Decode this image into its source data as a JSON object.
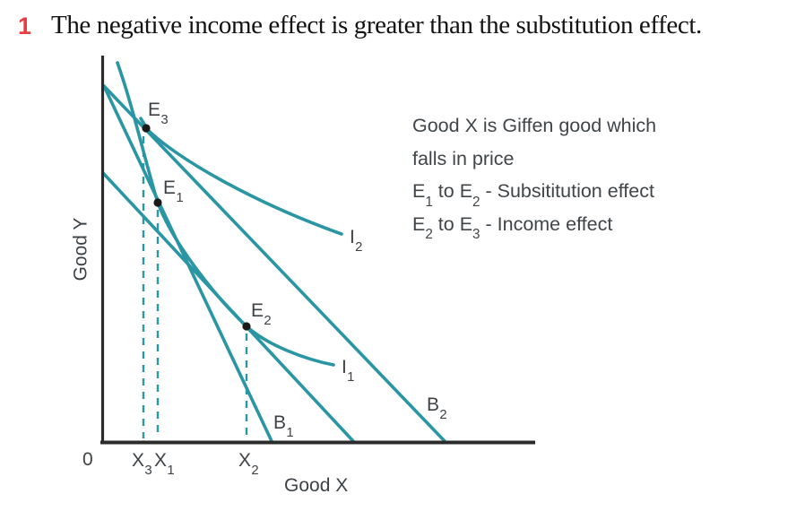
{
  "title": {
    "number": "1",
    "text": "The negative income effect is greater than the substitution effect."
  },
  "colors": {
    "curve_teal": "#2a96a3",
    "axis_black": "#2b2b2b",
    "label_gray": "#3d4246",
    "title_red": "#e63e44",
    "dot_black": "#1a1a1a"
  },
  "graph": {
    "origin_label": "0",
    "x_axis_label": "Good X",
    "y_axis_label": "Good Y",
    "points": [
      {
        "id": "E3",
        "label": [
          {
            "t": "E"
          },
          {
            "sub": "3"
          }
        ]
      },
      {
        "id": "E1",
        "label": [
          {
            "t": "E"
          },
          {
            "sub": "1"
          }
        ]
      },
      {
        "id": "E2",
        "label": [
          {
            "t": "E"
          },
          {
            "sub": "2"
          }
        ]
      }
    ],
    "budget_lines": [
      {
        "id": "B1",
        "label": [
          {
            "t": "B"
          },
          {
            "sub": "1"
          }
        ]
      },
      {
        "id": "B2",
        "label": [
          {
            "t": "B"
          },
          {
            "sub": "2"
          }
        ]
      }
    ],
    "indifference_curves": [
      {
        "id": "I1",
        "label": [
          {
            "t": "I"
          },
          {
            "sub": "1"
          }
        ]
      },
      {
        "id": "I2",
        "label": [
          {
            "t": "I"
          },
          {
            "sub": "2"
          }
        ]
      }
    ],
    "x_ticks": [
      {
        "id": "X3",
        "label": [
          {
            "t": "X"
          },
          {
            "sub": "3"
          }
        ]
      },
      {
        "id": "X1",
        "label": [
          {
            "t": "X"
          },
          {
            "sub": "1"
          }
        ]
      },
      {
        "id": "X2",
        "label": [
          {
            "t": "X"
          },
          {
            "sub": "2"
          }
        ]
      }
    ]
  },
  "annotation": {
    "lines": [
      {
        "parts": [
          {
            "t": "Good X is Giffen good which"
          }
        ]
      },
      {
        "parts": [
          {
            "t": "falls in price"
          }
        ]
      },
      {
        "parts": [
          {
            "t": "E"
          },
          {
            "sub": "1"
          },
          {
            "t": " to E"
          },
          {
            "sub": "2"
          },
          {
            "t": " - Subsititution effect"
          }
        ]
      },
      {
        "parts": [
          {
            "t": "E"
          },
          {
            "sub": "2"
          },
          {
            "t": " to E"
          },
          {
            "sub": "3"
          },
          {
            "t": " - Income effect"
          }
        ]
      }
    ]
  }
}
